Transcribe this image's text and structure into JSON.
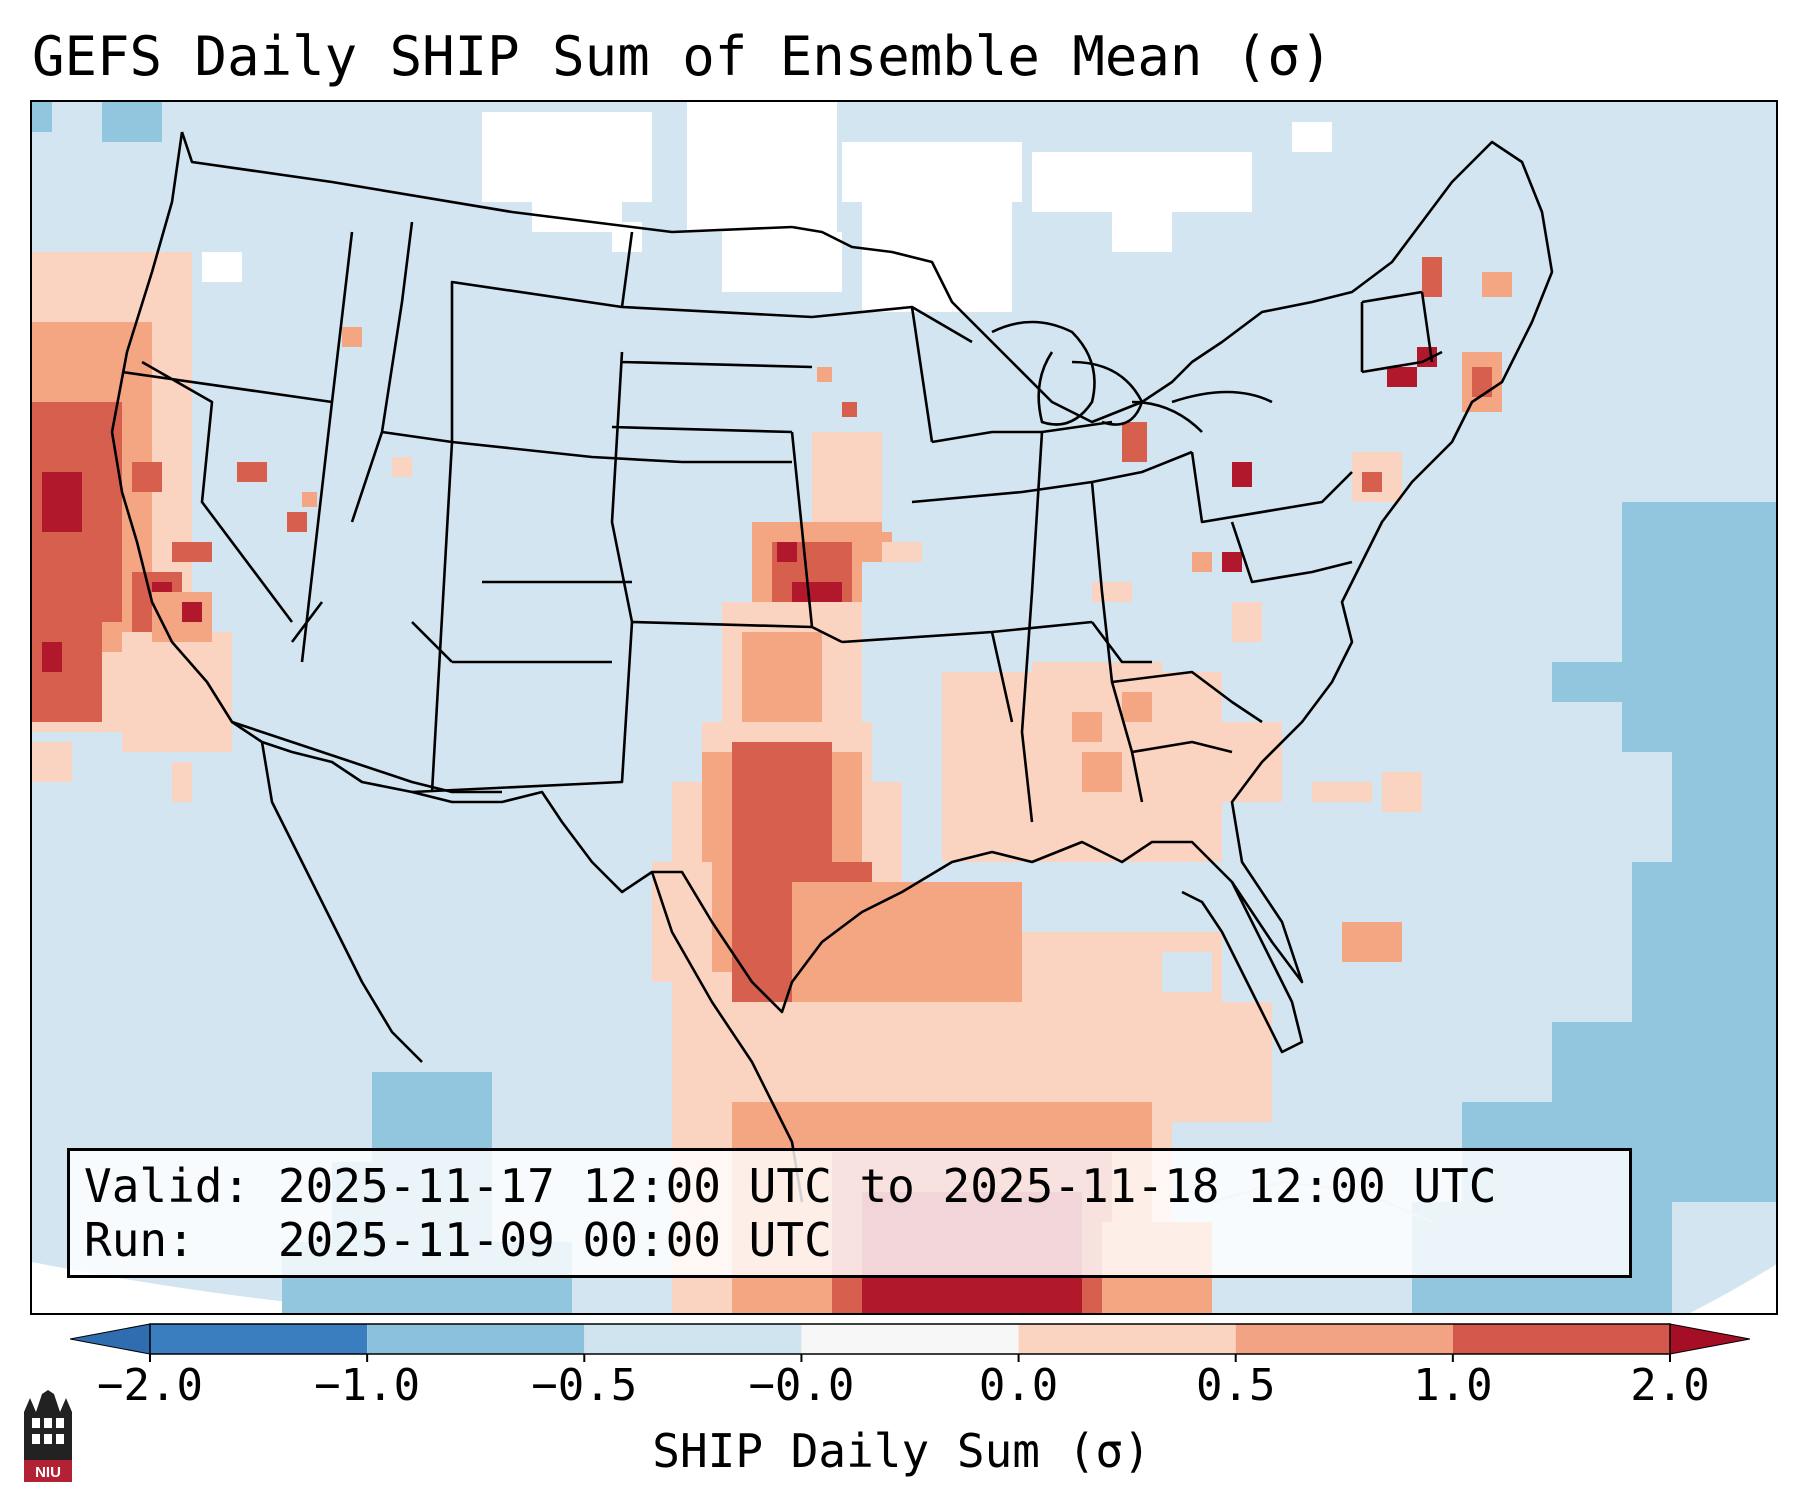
{
  "title": "GEFS Daily SHIP Sum of Ensemble Mean (σ)",
  "info": {
    "valid_label": "Valid:",
    "valid_value": "2025-11-17 12:00 UTC to 2025-11-18 12:00 UTC",
    "run_label": "Run:",
    "run_value": "2025-11-09 00:00 UTC"
  },
  "colorbar": {
    "label": "SHIP Daily Sum (σ)",
    "ticks": [
      "−2.0",
      "−1.0",
      "−0.5",
      "−0.0",
      "0.0",
      "0.5",
      "1.0",
      "2.0"
    ],
    "colors": [
      "#3b7ec0",
      "#8cc1dd",
      "#d0e4ef",
      "#f7f7f7",
      "#fbd4c1",
      "#f1a384",
      "#d3574b",
      "#b2182b"
    ],
    "under_color": "#2f6cb0",
    "over_color": "#a50f26"
  },
  "map": {
    "region": "Contiguous United States",
    "fill_default": "#d2e5f0",
    "no_data_color": "#ffffff",
    "border_color": "#000000"
  },
  "logo": {
    "text": "NIU",
    "color": "#b22234"
  }
}
